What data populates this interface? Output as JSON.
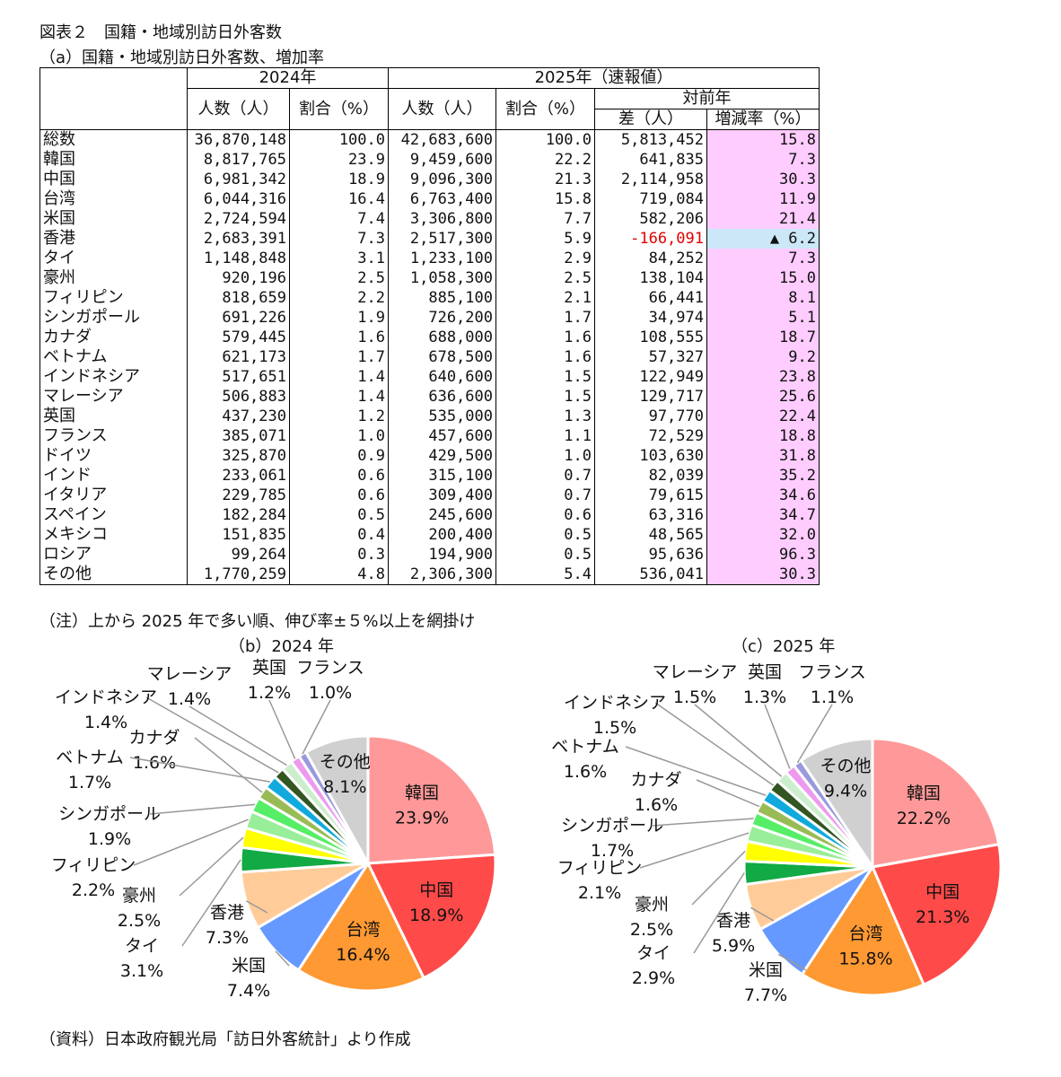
{
  "title": "図表２　国籍・地域別訪日外客数",
  "subtitle_a": "（a）国籍・地域別訪日外客数、増加率",
  "table": {
    "header_2024": "2024年",
    "header_2025": "2025年（速報値）",
    "header_yoy": "対前年",
    "col_people": "人数（人）",
    "col_share": "割合（%）",
    "col_diff": "差（人）",
    "col_rate": "増減率（%）",
    "rows": [
      [
        "総数",
        "36,870,148",
        "100.0",
        "42,683,600",
        "100.0",
        "5,813,452",
        "15.8"
      ],
      [
        "韓国",
        "8,817,765",
        "23.9",
        "9,459,600",
        "22.2",
        "641,835",
        "7.3"
      ],
      [
        "中国",
        "6,981,342",
        "18.9",
        "9,096,300",
        "21.3",
        "2,114,958",
        "30.3"
      ],
      [
        "台湾",
        "6,044,316",
        "16.4",
        "6,763,400",
        "15.8",
        "719,084",
        "11.9"
      ],
      [
        "米国",
        "2,724,594",
        "7.4",
        "3,306,800",
        "7.7",
        "582,206",
        "21.4"
      ],
      [
        "香港",
        "2,683,391",
        "7.3",
        "2,517,300",
        "5.9",
        "-166,091",
        "▲ 6.2"
      ],
      [
        "タイ",
        "1,148,848",
        "3.1",
        "1,233,100",
        "2.9",
        "84,252",
        "7.3"
      ],
      [
        "豪州",
        "920,196",
        "2.5",
        "1,058,300",
        "2.5",
        "138,104",
        "15.0"
      ],
      [
        "フィリピン",
        "818,659",
        "2.2",
        "885,100",
        "2.1",
        "66,441",
        "8.1"
      ],
      [
        "シンガポール",
        "691,226",
        "1.9",
        "726,200",
        "1.7",
        "34,974",
        "5.1"
      ],
      [
        "カナダ",
        "579,445",
        "1.6",
        "688,000",
        "1.6",
        "108,555",
        "18.7"
      ],
      [
        "ベトナム",
        "621,173",
        "1.7",
        "678,500",
        "1.6",
        "57,327",
        "9.2"
      ],
      [
        "インドネシア",
        "517,651",
        "1.4",
        "640,600",
        "1.5",
        "122,949",
        "23.8"
      ],
      [
        "マレーシア",
        "506,883",
        "1.4",
        "636,600",
        "1.5",
        "129,717",
        "25.6"
      ],
      [
        "英国",
        "437,230",
        "1.2",
        "535,000",
        "1.3",
        "97,770",
        "22.4"
      ],
      [
        "フランス",
        "385,071",
        "1.0",
        "457,600",
        "1.1",
        "72,529",
        "18.8"
      ],
      [
        "ドイツ",
        "325,870",
        "0.9",
        "429,500",
        "1.0",
        "103,630",
        "31.8"
      ],
      [
        "インド",
        "233,061",
        "0.6",
        "315,100",
        "0.7",
        "82,039",
        "35.2"
      ],
      [
        "イタリア",
        "229,785",
        "0.6",
        "309,400",
        "0.7",
        "79,615",
        "34.6"
      ],
      [
        "スペイン",
        "182,284",
        "0.5",
        "245,600",
        "0.6",
        "63,316",
        "34.7"
      ],
      [
        "メキシコ",
        "151,835",
        "0.4",
        "200,400",
        "0.5",
        "48,565",
        "32.0"
      ],
      [
        "ロシア",
        "99,264",
        "0.3",
        "194,900",
        "0.5",
        "95,636",
        "96.3"
      ],
      [
        "その他",
        "1,770,259",
        "4.8",
        "2,306,300",
        "5.4",
        "536,041",
        "30.3"
      ]
    ]
  },
  "note": "（注）上から 2025 年で多い順、伸び率±５%以上を網掛け",
  "source": "（資料）日本政府観光局「訪日外客統計」より作成",
  "highlight_colors": {
    "positive": "#ffccff",
    "negative": "#cce8f8",
    "negative_text": "#e00000"
  },
  "chart_data": [
    {
      "type": "pie",
      "title": "（b）2024 年",
      "categories": [
        "韓国",
        "中国",
        "台湾",
        "米国",
        "香港",
        "タイ",
        "豪州",
        "フィリピン",
        "シンガポール",
        "カナダ",
        "ベトナム",
        "インドネシア",
        "マレーシア",
        "英国",
        "フランス",
        "その他"
      ],
      "values": [
        23.9,
        18.9,
        16.4,
        7.4,
        7.3,
        3.1,
        2.5,
        2.2,
        1.9,
        1.6,
        1.7,
        1.4,
        1.4,
        1.2,
        1.0,
        8.1
      ],
      "labels": [
        "23.9%",
        "18.9%",
        "16.4%",
        "7.4%",
        "7.3%",
        "3.1%",
        "2.5%",
        "2.2%",
        "1.9%",
        "1.6%",
        "1.7%",
        "1.4%",
        "1.4%",
        "1.2%",
        "1.0%",
        "8.1%"
      ],
      "colors": [
        "#ff9999",
        "#ff4a4a",
        "#ff9933",
        "#6699ff",
        "#ffcc99",
        "#11aa44",
        "#ffff00",
        "#99ee99",
        "#55ee66",
        "#99bb55",
        "#11aadd",
        "#335522",
        "#cceecc",
        "#ee99ee",
        "#9999dd",
        "#d0d0d0"
      ]
    },
    {
      "type": "pie",
      "title": "（c）2025 年",
      "categories": [
        "韓国",
        "中国",
        "台湾",
        "米国",
        "香港",
        "タイ",
        "豪州",
        "フィリピン",
        "シンガポール",
        "カナダ",
        "ベトナム",
        "インドネシア",
        "マレーシア",
        "英国",
        "フランス",
        "その他"
      ],
      "values": [
        22.2,
        21.3,
        15.8,
        7.7,
        5.9,
        2.9,
        2.5,
        2.1,
        1.7,
        1.6,
        1.6,
        1.5,
        1.5,
        1.3,
        1.1,
        9.4
      ],
      "labels": [
        "22.2%",
        "21.3%",
        "15.8%",
        "7.7%",
        "5.9%",
        "2.9%",
        "2.5%",
        "2.1%",
        "1.7%",
        "1.6%",
        "1.6%",
        "1.5%",
        "1.5%",
        "1.3%",
        "1.1%",
        "9.4%"
      ],
      "colors": [
        "#ff9999",
        "#ff4a4a",
        "#ff9933",
        "#6699ff",
        "#ffcc99",
        "#11aa44",
        "#ffff00",
        "#99ee99",
        "#55ee66",
        "#99bb55",
        "#11aadd",
        "#335522",
        "#cceecc",
        "#ee99ee",
        "#9999dd",
        "#d0d0d0"
      ]
    }
  ]
}
